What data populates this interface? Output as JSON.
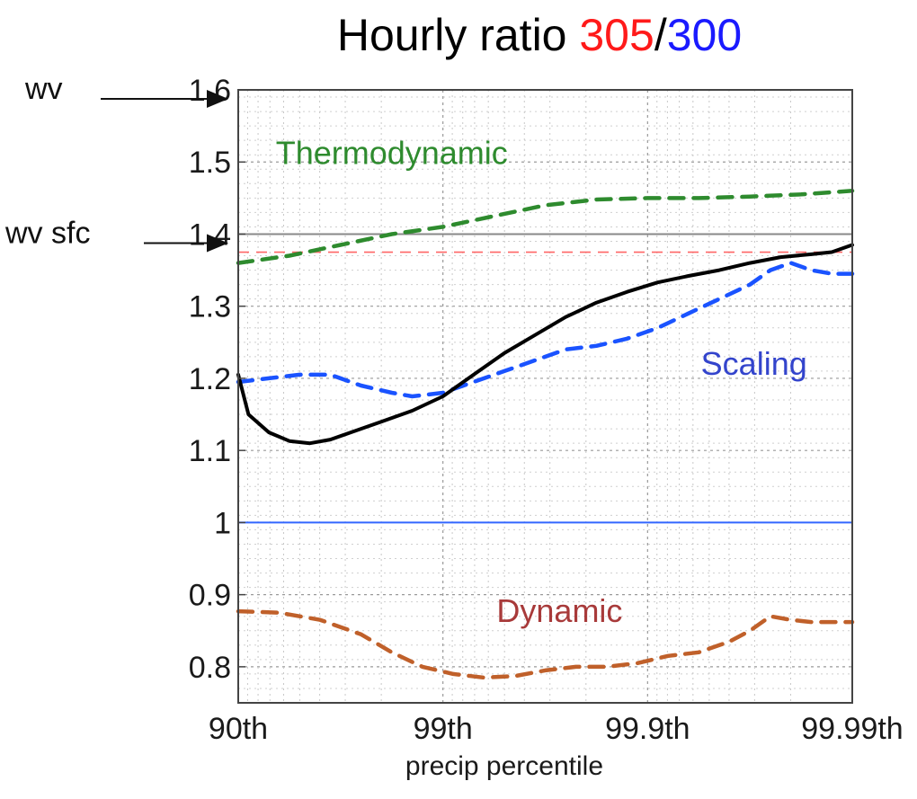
{
  "chart_data": {
    "type": "line",
    "title_parts": [
      {
        "text": "Hourly ratio ",
        "color": "#000000"
      },
      {
        "text": "305",
        "color": "#ff1a1a"
      },
      {
        "text": "/",
        "color": "#000000"
      },
      {
        "text": "300",
        "color": "#1a1aff"
      }
    ],
    "xlabel": "precip percentile",
    "ylabel": "",
    "x_ticks": [
      {
        "pos": 0,
        "label": "90th"
      },
      {
        "pos": 1,
        "label": "99th"
      },
      {
        "pos": 2,
        "label": "99.9th"
      },
      {
        "pos": 3,
        "label": "99.99th"
      }
    ],
    "xlim": [
      0,
      3
    ],
    "ylim": [
      0.75,
      1.6
    ],
    "y_ticks": [
      {
        "value": 0.8,
        "label": "0.8"
      },
      {
        "value": 0.9,
        "label": "0.9"
      },
      {
        "value": 1.0,
        "label": "1"
      },
      {
        "value": 1.1,
        "label": "1.1"
      },
      {
        "value": 1.2,
        "label": "1.2"
      },
      {
        "value": 1.3,
        "label": "1.3"
      },
      {
        "value": 1.4,
        "label": "1.4"
      },
      {
        "value": 1.5,
        "label": "1.5"
      },
      {
        "value": 1.6,
        "label": "1.6"
      }
    ],
    "grid": true,
    "x_scale": "log-percentile",
    "series": [
      {
        "key": "thermodynamic",
        "color": "#2e8b2e",
        "style": "dashed",
        "x": [
          0,
          0.25,
          0.5,
          0.75,
          1.0,
          1.25,
          1.5,
          1.75,
          2.0,
          2.25,
          2.5,
          2.75,
          3.0
        ],
        "y": [
          1.36,
          1.37,
          1.385,
          1.4,
          1.41,
          1.425,
          1.44,
          1.448,
          1.45,
          1.45,
          1.452,
          1.455,
          1.46
        ]
      },
      {
        "key": "scaling",
        "color": "#1a53ff",
        "style": "dashed",
        "x": [
          0,
          0.15,
          0.3,
          0.45,
          0.6,
          0.75,
          0.85,
          1.0,
          1.15,
          1.3,
          1.45,
          1.6,
          1.75,
          1.9,
          2.05,
          2.2,
          2.35,
          2.5,
          2.6,
          2.7,
          2.8,
          2.9,
          3.0
        ],
        "y": [
          1.195,
          1.2,
          1.205,
          1.205,
          1.19,
          1.18,
          1.175,
          1.18,
          1.195,
          1.21,
          1.225,
          1.24,
          1.245,
          1.255,
          1.27,
          1.29,
          1.31,
          1.33,
          1.35,
          1.36,
          1.35,
          1.345,
          1.345
        ]
      },
      {
        "key": "full",
        "color": "#000000",
        "style": "solid",
        "x": [
          0,
          0.05,
          0.15,
          0.25,
          0.35,
          0.45,
          0.55,
          0.7,
          0.85,
          1.0,
          1.15,
          1.3,
          1.45,
          1.6,
          1.75,
          1.9,
          2.05,
          2.2,
          2.35,
          2.5,
          2.65,
          2.8,
          2.9,
          3.0
        ],
        "y": [
          1.205,
          1.15,
          1.125,
          1.113,
          1.11,
          1.115,
          1.125,
          1.14,
          1.155,
          1.175,
          1.205,
          1.235,
          1.26,
          1.285,
          1.305,
          1.32,
          1.333,
          1.342,
          1.35,
          1.36,
          1.368,
          1.372,
          1.375,
          1.385
        ]
      },
      {
        "key": "dynamic",
        "color": "#c0602a",
        "style": "dashed",
        "x": [
          0,
          0.2,
          0.4,
          0.6,
          0.75,
          0.9,
          1.05,
          1.2,
          1.35,
          1.5,
          1.65,
          1.8,
          1.95,
          2.1,
          2.25,
          2.4,
          2.5,
          2.6,
          2.7,
          2.8,
          2.9,
          3.0
        ],
        "y": [
          0.877,
          0.875,
          0.865,
          0.845,
          0.82,
          0.8,
          0.79,
          0.785,
          0.787,
          0.795,
          0.8,
          0.8,
          0.805,
          0.815,
          0.82,
          0.835,
          0.85,
          0.87,
          0.865,
          0.862,
          0.862,
          0.862
        ]
      }
    ],
    "reference_lines": [
      {
        "key": "one",
        "y": 1.0,
        "color": "#3366ff",
        "style": "solid"
      },
      {
        "key": "red-ref",
        "y": 1.375,
        "color": "#ff6666",
        "style": "dashed"
      },
      {
        "key": "wv-sfc-ref",
        "y": 1.4,
        "color": "#888888",
        "style": "solid"
      },
      {
        "key": "wv-ref",
        "y": 1.6,
        "color": "#888888",
        "style": "solid"
      }
    ],
    "annotations": [
      {
        "key": "thermodynamic",
        "text": "Thermodynamic",
        "color": "#2e8b2e",
        "x": 0.75,
        "y": 1.497
      },
      {
        "key": "scaling",
        "text": "Scaling",
        "color": "#3344cc",
        "x": 2.52,
        "y": 1.205
      },
      {
        "key": "dynamic",
        "text": "Dynamic",
        "color": "#a83a3a",
        "x": 1.57,
        "y": 0.862
      }
    ],
    "outer_labels": [
      {
        "key": "wv",
        "text": "wv",
        "y": 1.6
      },
      {
        "key": "wv-sfc",
        "text": "wv sfc",
        "y": 1.4
      }
    ]
  }
}
